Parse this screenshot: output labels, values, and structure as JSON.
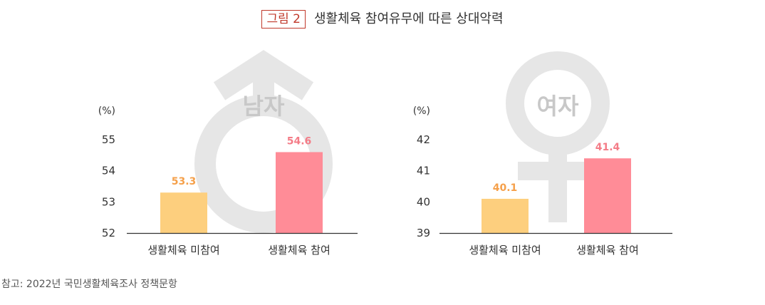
{
  "figure": {
    "tag": "그림 2",
    "title": "생활체육 참여유무에 따른 상대악력"
  },
  "source": "참고: 2022년 국민생활체육조사 정책문항",
  "colors": {
    "non_participation": "#FDCF7E",
    "participation": "#FF8C97",
    "non_label": "#F5A04A",
    "part_label": "#F47C87",
    "watermark": "#E6E6E6",
    "axis": "#333333"
  },
  "chart_data": [
    {
      "type": "bar",
      "title": "남자",
      "ylabel": "(%)",
      "categories": [
        "생활체육 미참여",
        "생활체육 참여"
      ],
      "values": [
        53.3,
        54.6
      ],
      "value_labels": [
        "53.3",
        "54.6"
      ],
      "yticks": [
        "52",
        "53",
        "54",
        "55"
      ],
      "ylim": [
        52,
        55
      ],
      "symbol": "male"
    },
    {
      "type": "bar",
      "title": "여자",
      "ylabel": "(%)",
      "categories": [
        "생활체육 미참여",
        "생활체육 참여"
      ],
      "values": [
        40.1,
        41.4
      ],
      "value_labels": [
        "40.1",
        "41.4"
      ],
      "yticks": [
        "39",
        "40",
        "41",
        "42"
      ],
      "ylim": [
        39,
        42
      ],
      "symbol": "female"
    }
  ]
}
